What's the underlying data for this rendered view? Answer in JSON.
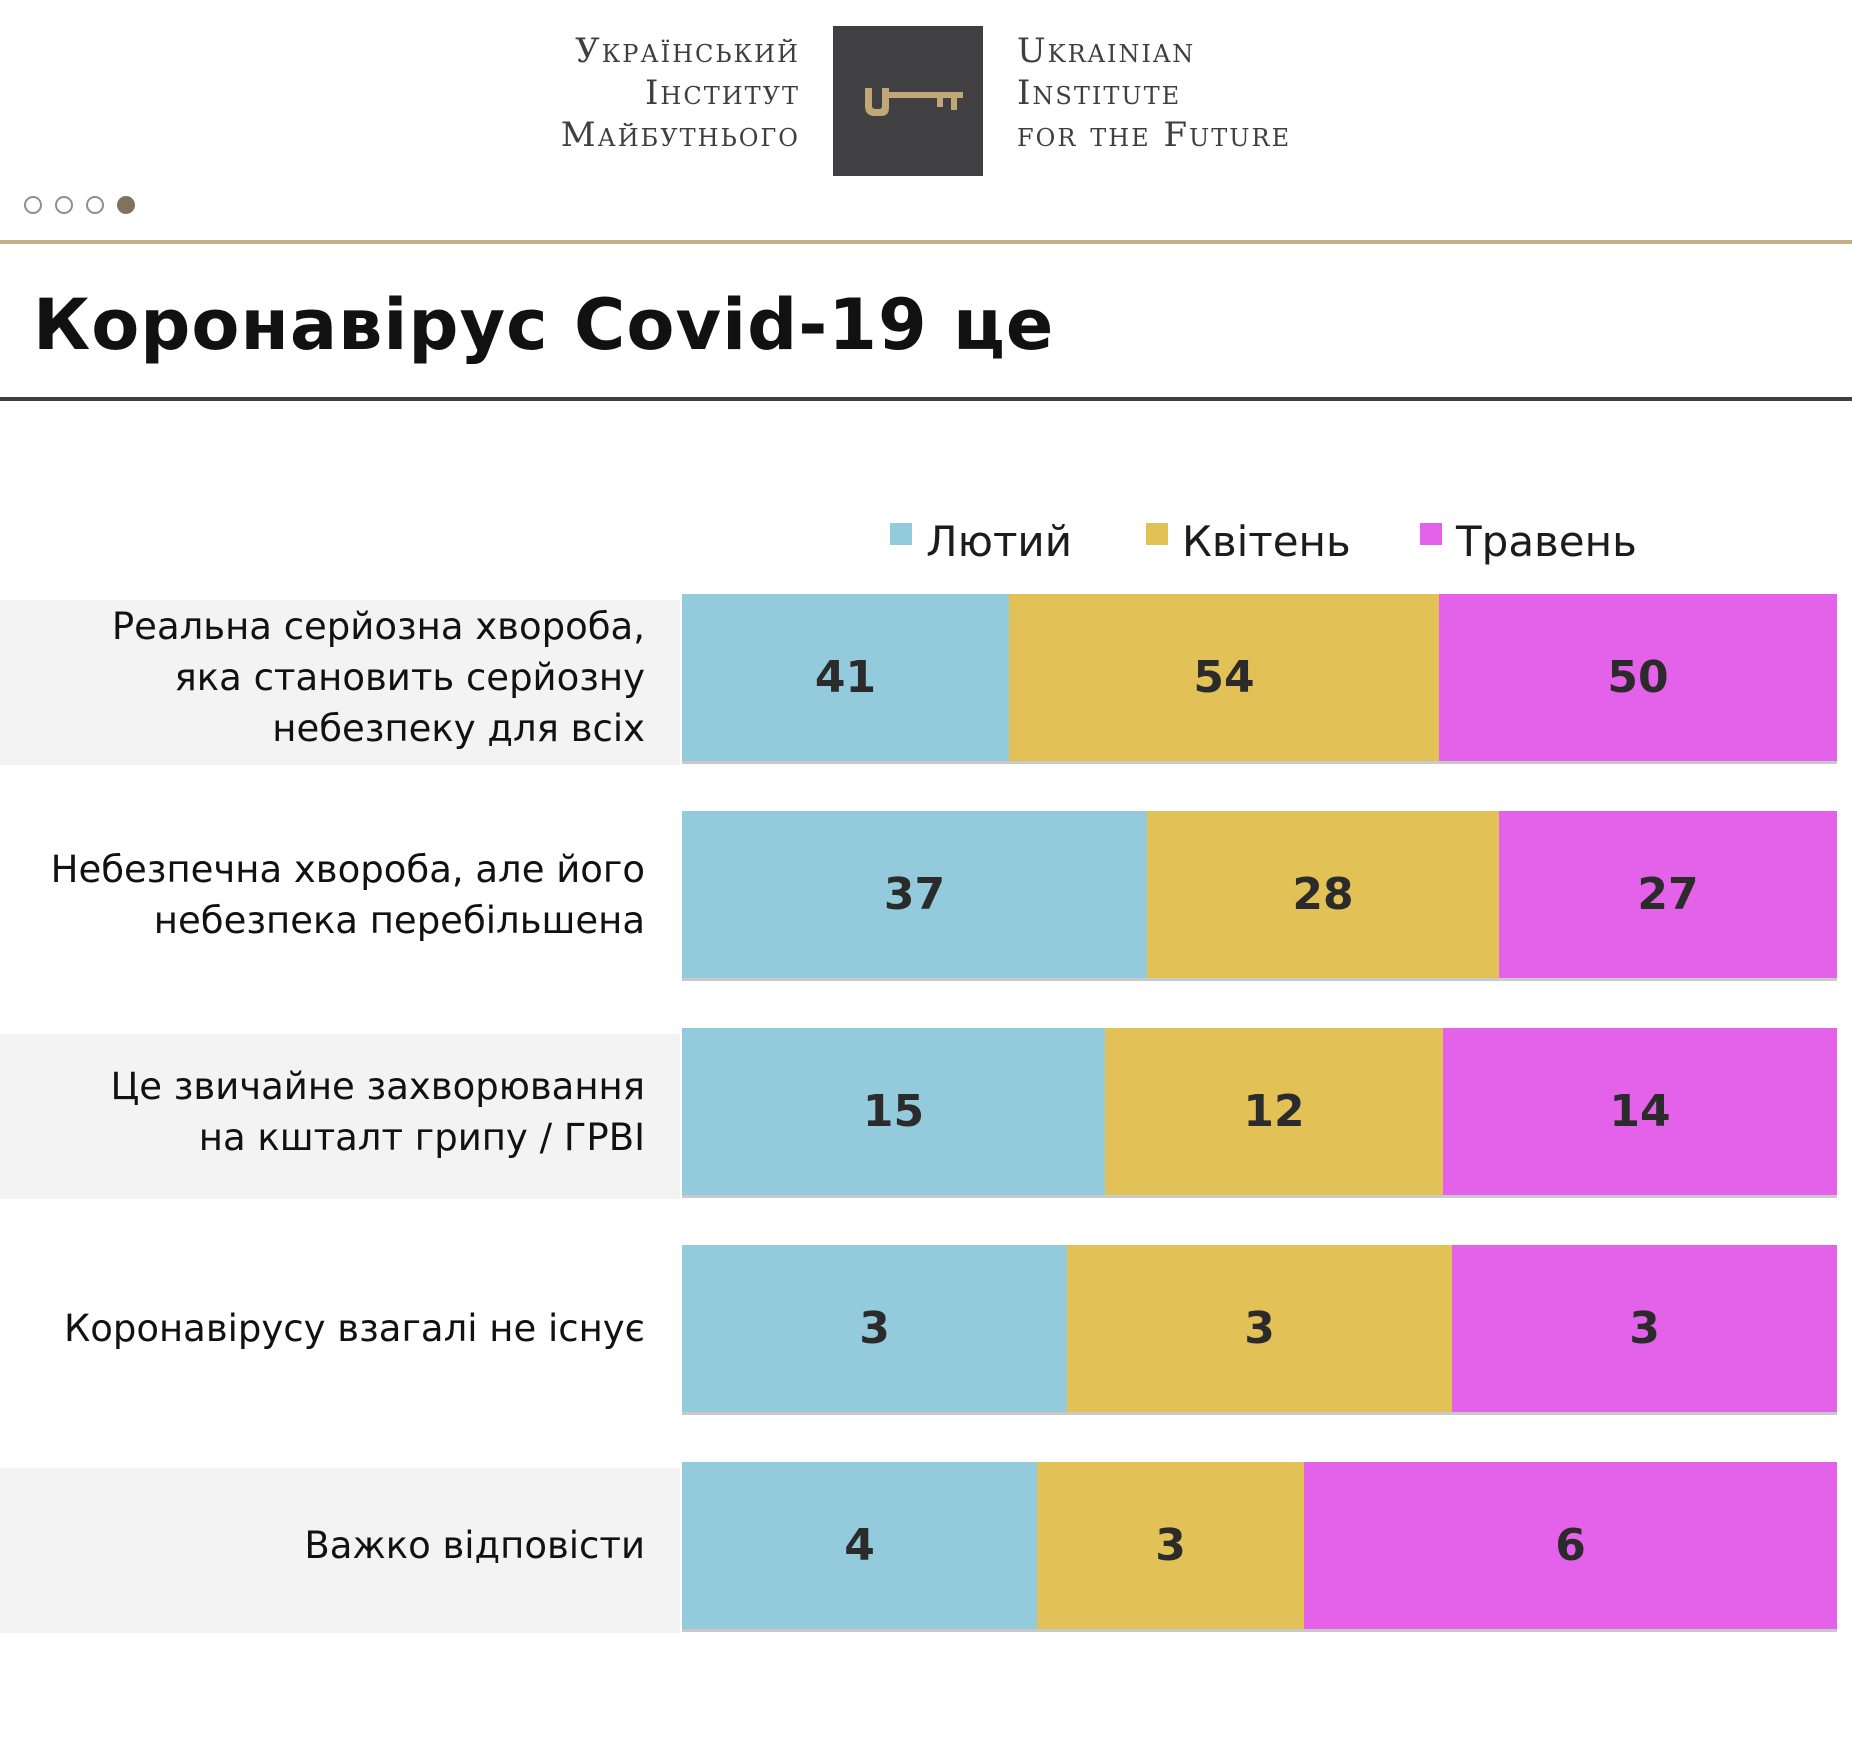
{
  "header": {
    "logo_left_lines": [
      "Український",
      "Інститут",
      "Майбутнього"
    ],
    "logo_right_lines": [
      "Ukrainian",
      "Institute",
      "for the Future"
    ],
    "logo_icon": "key-icon",
    "page_dots": {
      "count": 4,
      "active_index": 3
    }
  },
  "title": "Коронавірус Covid-19 це",
  "chart_data": {
    "type": "bar",
    "orientation": "horizontal",
    "stacked": true,
    "categories": [
      "Реальна серйозна хвороба, яка становить серйозну небезпеку для всіх",
      "Небезпечна хвороба, але його небезпека перебільшена",
      "Це звичайне захворювання на кшталт грипу / ГРВІ",
      "Коронавірусу взагалі не існує",
      "Важко відповісти"
    ],
    "category_label_lines": [
      [
        "Реальна серйозна хвороба,",
        "яка становить серйозну",
        "небезпеку для всіх"
      ],
      [
        "Небезпечна хвороба, але його",
        "небезпека перебільшена"
      ],
      [
        "Це звичайне захворювання",
        "на кшталт грипу / ГРВІ"
      ],
      [
        "Коронавірусу взагалі не існує"
      ],
      [
        "Важко відповісти"
      ]
    ],
    "series": [
      {
        "name": "Лютий",
        "color": "#93cadc",
        "values": [
          41,
          37,
          15,
          3,
          4
        ]
      },
      {
        "name": "Квітень",
        "color": "#e2c157",
        "values": [
          54,
          28,
          12,
          3,
          3
        ]
      },
      {
        "name": "Травень",
        "color": "#e461e9",
        "values": [
          50,
          27,
          14,
          3,
          6
        ]
      }
    ],
    "title": "Коронавірус Covid-19 це",
    "xlabel": "",
    "ylabel": "",
    "legend_position": "top",
    "show_data_labels": true
  }
}
